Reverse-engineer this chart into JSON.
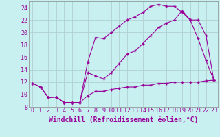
{
  "xlabel": "Windchill (Refroidissement éolien,°C)",
  "bg_color": "#c8f0f0",
  "line_color": "#990099",
  "grid_color": "#b0d0d0",
  "xlim": [
    -0.5,
    23.5
  ],
  "ylim": [
    8,
    25
  ],
  "xticks": [
    0,
    1,
    2,
    3,
    4,
    5,
    6,
    7,
    8,
    9,
    10,
    11,
    12,
    13,
    14,
    15,
    16,
    17,
    18,
    19,
    20,
    21,
    22,
    23
  ],
  "yticks": [
    8,
    10,
    12,
    14,
    16,
    18,
    20,
    22,
    24
  ],
  "line1_x": [
    0,
    1,
    2,
    3,
    4,
    5,
    6,
    7,
    8,
    9,
    10,
    11,
    12,
    13,
    14,
    15,
    16,
    17,
    18,
    19,
    20,
    21,
    22,
    23
  ],
  "line1_y": [
    11.8,
    11.2,
    9.5,
    9.6,
    8.7,
    8.7,
    8.7,
    9.8,
    10.5,
    10.5,
    10.8,
    11.0,
    11.2,
    11.2,
    11.5,
    11.5,
    11.8,
    11.8,
    12.0,
    12.0,
    12.0,
    12.0,
    12.2,
    12.3
  ],
  "line2_x": [
    0,
    1,
    2,
    3,
    4,
    5,
    6,
    7,
    8,
    9,
    10,
    11,
    12,
    13,
    14,
    15,
    16,
    17,
    18,
    19,
    20,
    21,
    22,
    23
  ],
  "line2_y": [
    11.8,
    11.2,
    9.5,
    9.6,
    8.7,
    8.7,
    8.7,
    15.2,
    19.2,
    19.0,
    20.0,
    21.0,
    22.0,
    22.5,
    23.2,
    24.2,
    24.5,
    24.2,
    24.2,
    23.2,
    22.0,
    19.0,
    15.5,
    12.3
  ],
  "line3_x": [
    1,
    2,
    3,
    4,
    5,
    6,
    7,
    8,
    9,
    10,
    11,
    12,
    13,
    14,
    15,
    16,
    17,
    18,
    19,
    20,
    21,
    22,
    23
  ],
  "line3_y": [
    11.2,
    9.5,
    9.6,
    8.7,
    8.7,
    8.7,
    13.5,
    13.0,
    12.5,
    13.5,
    15.0,
    16.5,
    17.0,
    18.2,
    19.5,
    20.8,
    21.5,
    22.0,
    23.5,
    22.0,
    22.0,
    19.5,
    12.3
  ],
  "fontsize_label": 7,
  "fontsize_tick": 6.0
}
